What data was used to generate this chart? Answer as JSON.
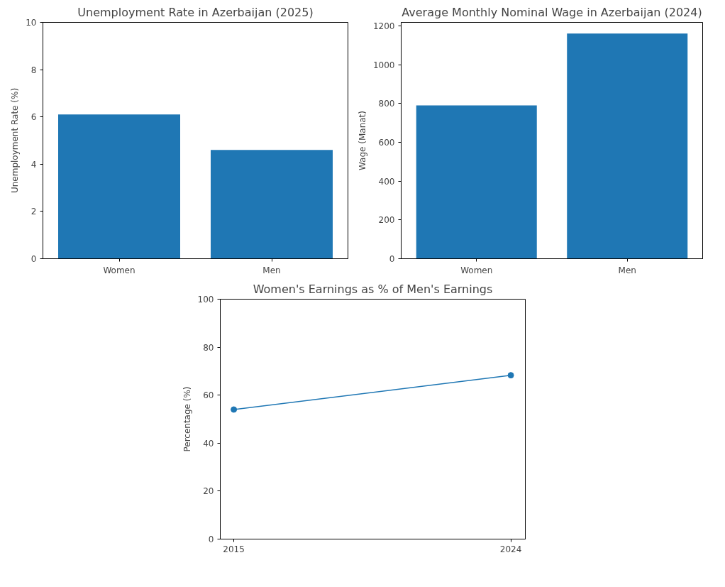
{
  "chart_data": [
    {
      "type": "bar",
      "title": "Unemployment Rate in Azerbaijan (2025)",
      "ylabel": "Unemployment Rate (%)",
      "categories": [
        "Women",
        "Men"
      ],
      "values": [
        6.1,
        4.6
      ],
      "color": "#1f77b4",
      "ylim": [
        0,
        10
      ],
      "yticks": [
        0,
        2,
        4,
        6,
        8,
        10
      ],
      "grid": false
    },
    {
      "type": "bar",
      "title": "Average Monthly Nominal Wage in Azerbaijan (2024)",
      "ylabel": "Wage (Manat)",
      "categories": [
        "Women",
        "Men"
      ],
      "values": [
        790,
        1160
      ],
      "color": "#1f77b4",
      "ylim": [
        0,
        1218
      ],
      "yticks": [
        0,
        200,
        400,
        600,
        800,
        1000,
        1200
      ],
      "grid": false
    },
    {
      "type": "line",
      "title": "Women's Earnings as % of Men's Earnings",
      "ylabel": "Percentage (%)",
      "x": [
        2015,
        2024
      ],
      "values": [
        54.0,
        68.3
      ],
      "color": "#1f77b4",
      "marker": "circle",
      "line_style": "solid",
      "xlim": [
        2014.56,
        2024.47
      ],
      "xticks": [
        2015,
        2024
      ],
      "ylim": [
        0,
        100
      ],
      "yticks": [
        0,
        20,
        40,
        60,
        80,
        100
      ],
      "grid": false
    }
  ]
}
